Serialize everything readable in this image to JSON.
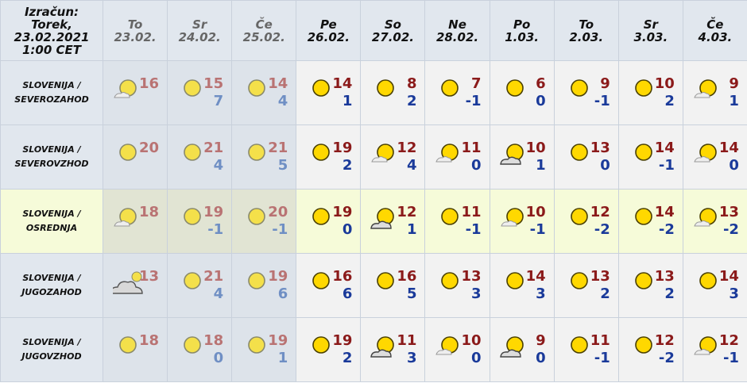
{
  "header": {
    "corner": [
      "Izračun:",
      "Torek,",
      "23.02.2021",
      "1:00 CET"
    ],
    "days": [
      {
        "day": "To",
        "date": "23.02.",
        "past": true
      },
      {
        "day": "Sr",
        "date": "24.02.",
        "past": true
      },
      {
        "day": "Če",
        "date": "25.02.",
        "past": true
      },
      {
        "day": "Pe",
        "date": "26.02.",
        "past": false
      },
      {
        "day": "So",
        "date": "27.02.",
        "past": false
      },
      {
        "day": "Ne",
        "date": "28.02.",
        "past": false
      },
      {
        "day": "Po",
        "date": "1.03.",
        "past": false
      },
      {
        "day": "To",
        "date": "2.03.",
        "past": false
      },
      {
        "day": "Sr",
        "date": "3.03.",
        "past": false
      },
      {
        "day": "Če",
        "date": "4.03.",
        "past": false
      }
    ]
  },
  "rows": [
    {
      "location": [
        "SLOVENIJA /",
        "SEVEROZAHOD"
      ],
      "highlighted": false,
      "cells": [
        {
          "icon": "sun-small-cloud",
          "max": "16",
          "min": ""
        },
        {
          "icon": "sun",
          "max": "15",
          "min": "7"
        },
        {
          "icon": "sun",
          "max": "14",
          "min": "4"
        },
        {
          "icon": "sun",
          "max": "14",
          "min": "1"
        },
        {
          "icon": "sun",
          "max": "8",
          "min": "2"
        },
        {
          "icon": "sun",
          "max": "7",
          "min": "-1"
        },
        {
          "icon": "sun",
          "max": "6",
          "min": "0"
        },
        {
          "icon": "sun",
          "max": "9",
          "min": "-1"
        },
        {
          "icon": "sun",
          "max": "10",
          "min": "2"
        },
        {
          "icon": "sun-small-cloud",
          "max": "9",
          "min": "1"
        }
      ]
    },
    {
      "location": [
        "SLOVENIJA /",
        "SEVEROVZHOD"
      ],
      "highlighted": false,
      "cells": [
        {
          "icon": "sun",
          "max": "20",
          "min": ""
        },
        {
          "icon": "sun",
          "max": "21",
          "min": "4"
        },
        {
          "icon": "sun",
          "max": "21",
          "min": "5"
        },
        {
          "icon": "sun",
          "max": "19",
          "min": "2"
        },
        {
          "icon": "sun-small-cloud",
          "max": "12",
          "min": "4"
        },
        {
          "icon": "sun-small-cloud",
          "max": "11",
          "min": "0"
        },
        {
          "icon": "partly-cloudy",
          "max": "10",
          "min": "1"
        },
        {
          "icon": "sun",
          "max": "13",
          "min": "0"
        },
        {
          "icon": "sun",
          "max": "14",
          "min": "-1"
        },
        {
          "icon": "sun-small-cloud",
          "max": "14",
          "min": "0"
        }
      ]
    },
    {
      "location": [
        "SLOVENIJA /",
        "OSREDNJA"
      ],
      "highlighted": true,
      "cells": [
        {
          "icon": "sun-small-cloud",
          "max": "18",
          "min": ""
        },
        {
          "icon": "sun",
          "max": "19",
          "min": "-1"
        },
        {
          "icon": "sun",
          "max": "20",
          "min": "-1"
        },
        {
          "icon": "sun",
          "max": "19",
          "min": "0"
        },
        {
          "icon": "partly-cloudy",
          "max": "12",
          "min": "1"
        },
        {
          "icon": "sun",
          "max": "11",
          "min": "-1"
        },
        {
          "icon": "sun-small-cloud",
          "max": "10",
          "min": "-1"
        },
        {
          "icon": "sun",
          "max": "12",
          "min": "-2"
        },
        {
          "icon": "sun",
          "max": "14",
          "min": "-2"
        },
        {
          "icon": "sun-small-cloud",
          "max": "13",
          "min": "-2"
        }
      ]
    },
    {
      "location": [
        "SLOVENIJA /",
        "JUGOZAHOD"
      ],
      "highlighted": false,
      "cells": [
        {
          "icon": "cloudy",
          "max": "13",
          "min": ""
        },
        {
          "icon": "sun",
          "max": "21",
          "min": "4"
        },
        {
          "icon": "sun",
          "max": "19",
          "min": "6"
        },
        {
          "icon": "sun",
          "max": "16",
          "min": "6"
        },
        {
          "icon": "sun",
          "max": "16",
          "min": "5"
        },
        {
          "icon": "sun",
          "max": "13",
          "min": "3"
        },
        {
          "icon": "sun",
          "max": "14",
          "min": "3"
        },
        {
          "icon": "sun",
          "max": "13",
          "min": "2"
        },
        {
          "icon": "sun",
          "max": "13",
          "min": "2"
        },
        {
          "icon": "sun",
          "max": "14",
          "min": "3"
        }
      ]
    },
    {
      "location": [
        "SLOVENIJA /",
        "JUGOVZHOD"
      ],
      "highlighted": false,
      "cells": [
        {
          "icon": "sun",
          "max": "18",
          "min": ""
        },
        {
          "icon": "sun",
          "max": "18",
          "min": "0"
        },
        {
          "icon": "sun",
          "max": "19",
          "min": "1"
        },
        {
          "icon": "sun",
          "max": "19",
          "min": "2"
        },
        {
          "icon": "partly-cloudy",
          "max": "11",
          "min": "3"
        },
        {
          "icon": "sun-small-cloud",
          "max": "10",
          "min": "0"
        },
        {
          "icon": "partly-cloudy",
          "max": "9",
          "min": "0"
        },
        {
          "icon": "sun",
          "max": "11",
          "min": "-1"
        },
        {
          "icon": "sun",
          "max": "12",
          "min": "-2"
        },
        {
          "icon": "sun-small-cloud",
          "max": "12",
          "min": "-1"
        }
      ]
    }
  ]
}
